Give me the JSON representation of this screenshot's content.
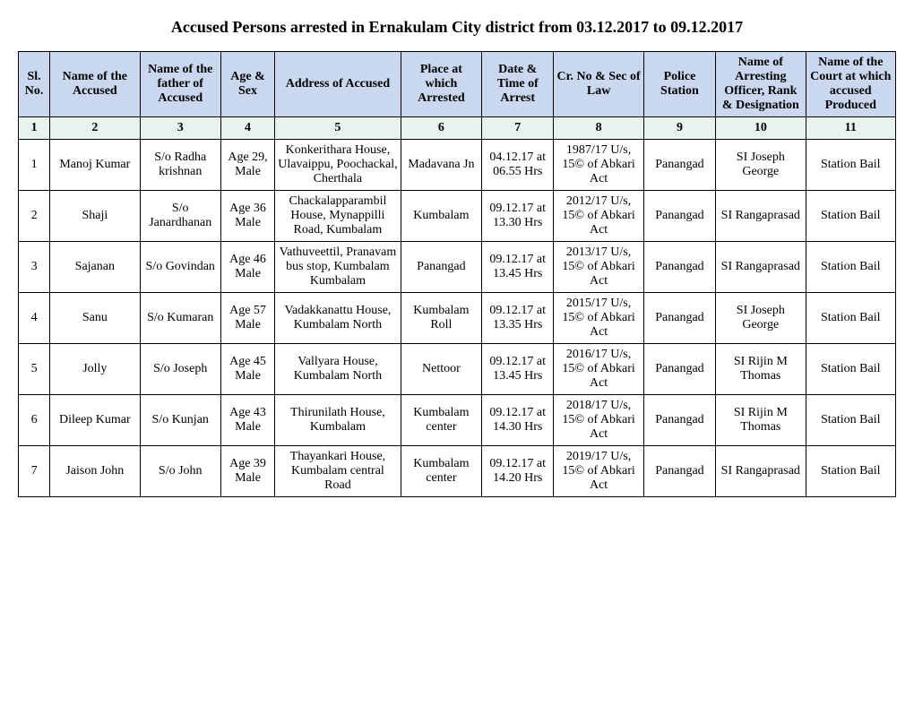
{
  "title": "Accused Persons arrested in   Ernakulam City  district from    03.12.2017 to 09.12.2017",
  "columns": [
    "Sl. No.",
    "Name of the Accused",
    "Name of the father of Accused",
    "Age & Sex",
    "Address of Accused",
    "Place at which Arrested",
    "Date & Time of Arrest",
    "Cr. No & Sec of Law",
    "Police Station",
    "Name of Arresting Officer, Rank & Designation",
    "Name of the Court at which accused Produced"
  ],
  "col_numbers": [
    "1",
    "2",
    "3",
    "4",
    "5",
    "6",
    "7",
    "8",
    "9",
    "10",
    "11"
  ],
  "rows": [
    {
      "sl": "1",
      "name": "Manoj Kumar",
      "father": "S/o Radha krishnan",
      "age": "Age 29, Male",
      "address": "Konkerithara House, Ulavaippu, Poochackal, Cherthala",
      "place": "Madavana Jn",
      "datetime": "04.12.17 at 06.55 Hrs",
      "crno": "1987/17 U/s,  15© of Abkari Act",
      "station": "Panangad",
      "officer": "SI Joseph George",
      "court": "Station Bail"
    },
    {
      "sl": "2",
      "name": "Shaji",
      "father": "S/o Janardhanan",
      "age": "Age 36 Male",
      "address": "Chackalapparambil House, Mynappilli Road, Kumbalam",
      "place": "Kumbalam",
      "datetime": "09.12.17 at 13.30 Hrs",
      "crno": "2012/17 U/s,  15© of Abkari Act",
      "station": "Panangad",
      "officer": "SI Rangaprasad",
      "court": "Station Bail"
    },
    {
      "sl": "3",
      "name": "Sajanan",
      "father": "S/o Govindan",
      "age": "Age 46 Male",
      "address": "Vathuveettil, Pranavam bus stop, Kumbalam Kumbalam",
      "place": "Panangad",
      "datetime": "09.12.17 at 13.45 Hrs",
      "crno": "2013/17 U/s,  15© of Abkari Act",
      "station": "Panangad",
      "officer": "SI Rangaprasad",
      "court": "Station Bail"
    },
    {
      "sl": "4",
      "name": "Sanu",
      "father": "S/o Kumaran",
      "age": "Age 57 Male",
      "address": "Vadakkanattu House, Kumbalam North",
      "place": "Kumbalam Roll",
      "datetime": "09.12.17 at 13.35 Hrs",
      "crno": "2015/17 U/s,  15© of Abkari Act",
      "station": "Panangad",
      "officer": "SI Joseph George",
      "court": "Station Bail"
    },
    {
      "sl": "5",
      "name": "Jolly",
      "father": "S/o Joseph",
      "age": "Age 45 Male",
      "address": "Vallyara House, Kumbalam North",
      "place": "Nettoor",
      "datetime": "09.12.17 at 13.45 Hrs",
      "crno": "2016/17 U/s,  15© of Abkari Act",
      "station": "Panangad",
      "officer": "SI Rijin M Thomas",
      "court": "Station Bail"
    },
    {
      "sl": "6",
      "name": "Dileep Kumar",
      "father": "S/o Kunjan",
      "age": "Age 43 Male",
      "address": "Thirunilath House, Kumbalam",
      "place": "Kumbalam center",
      "datetime": "09.12.17 at 14.30 Hrs",
      "crno": "2018/17 U/s,  15© of Abkari Act",
      "station": "Panangad",
      "officer": "SI Rijin M Thomas",
      "court": "Station Bail"
    },
    {
      "sl": "7",
      "name": "Jaison John",
      "father": "S/o John",
      "age": "Age 39 Male",
      "address": "Thayankari House, Kumbalam central Road",
      "place": "Kumbalam center",
      "datetime": "09.12.17 at 14.20 Hrs",
      "crno": "2019/17 U/s,  15© of Abkari Act",
      "station": "Panangad",
      "officer": "SI Rangaprasad",
      "court": "Station Bail"
    }
  ],
  "style": {
    "header_bg": "#c9d8ef",
    "numrow_bg": "#e9f3ee",
    "border_color": "#000000",
    "font_family": "Times New Roman",
    "title_fontsize": 18,
    "cell_fontsize": 14
  }
}
